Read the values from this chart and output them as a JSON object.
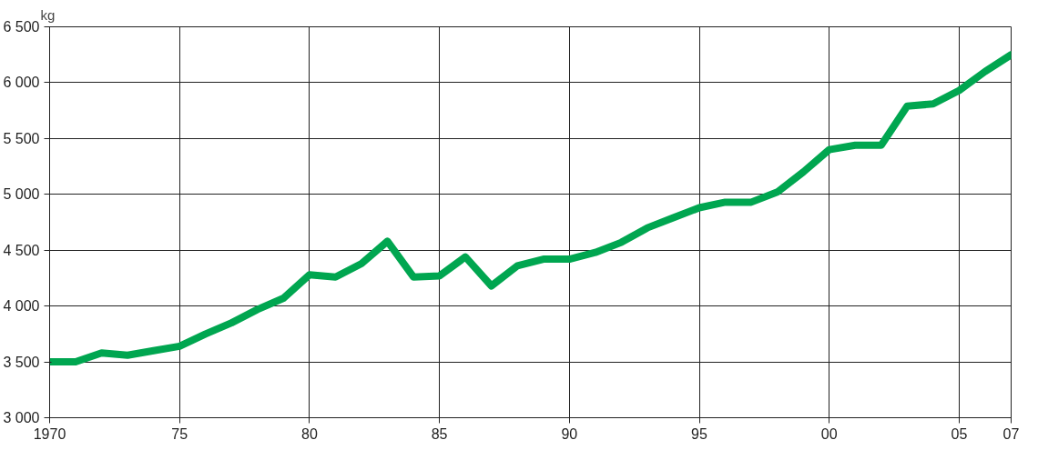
{
  "chart_data": {
    "type": "line",
    "ylabel": "kg",
    "x": [
      1970,
      1971,
      1972,
      1973,
      1974,
      1975,
      1976,
      1977,
      1978,
      1979,
      1980,
      1981,
      1982,
      1983,
      1984,
      1985,
      1986,
      1987,
      1988,
      1989,
      1990,
      1991,
      1992,
      1993,
      1994,
      1995,
      1996,
      1997,
      1998,
      1999,
      2000,
      2001,
      2002,
      2003,
      2004,
      2005,
      2006,
      2007
    ],
    "series": [
      {
        "color": "#00a650",
        "values": [
          3500,
          3500,
          3580,
          3560,
          3600,
          3640,
          3750,
          3850,
          3970,
          4070,
          4280,
          4260,
          4380,
          4580,
          4260,
          4270,
          4440,
          4180,
          4360,
          4420,
          4420,
          4480,
          4570,
          4700,
          4790,
          4880,
          4930,
          4930,
          5020,
          5200,
          5400,
          5440,
          5440,
          5790,
          5810,
          5930,
          6100,
          6250
        ]
      }
    ],
    "xlim": [
      1970,
      2007
    ],
    "ylim": [
      3000,
      6500
    ],
    "xticks": [
      {
        "value": 1970,
        "label": "1970"
      },
      {
        "value": 1975,
        "label": "75"
      },
      {
        "value": 1980,
        "label": "80"
      },
      {
        "value": 1985,
        "label": "85"
      },
      {
        "value": 1990,
        "label": "90"
      },
      {
        "value": 1995,
        "label": "95"
      },
      {
        "value": 2000,
        "label": "00"
      },
      {
        "value": 2005,
        "label": "05"
      },
      {
        "value": 2007,
        "label": "07"
      }
    ],
    "yticks": [
      {
        "value": 3000,
        "label": "3 000"
      },
      {
        "value": 3500,
        "label": "3 500"
      },
      {
        "value": 4000,
        "label": "4 000"
      },
      {
        "value": 4500,
        "label": "4 500"
      },
      {
        "value": 5000,
        "label": "5 000"
      },
      {
        "value": 5500,
        "label": "5 500"
      },
      {
        "value": 6000,
        "label": "6 000"
      },
      {
        "value": 6500,
        "label": "6 500"
      }
    ],
    "grid": true,
    "marker": "none",
    "line_style": "solid"
  }
}
